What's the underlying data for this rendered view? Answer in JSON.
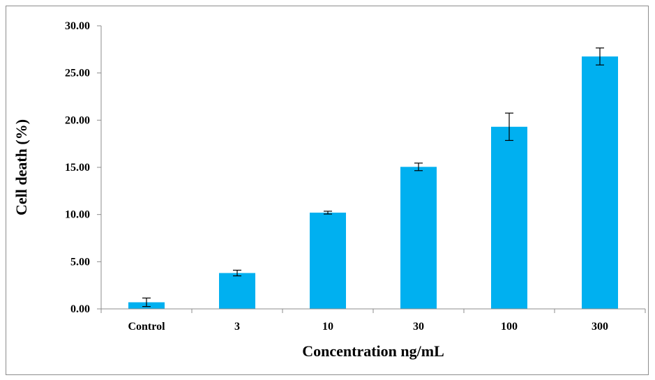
{
  "chart_data": {
    "type": "bar",
    "title": "",
    "xlabel": "Concentration ng/mL",
    "ylabel": "Cell death (%)",
    "categories": [
      "Control",
      "3",
      "10",
      "30",
      "100",
      "300"
    ],
    "values": [
      0.7,
      3.8,
      10.2,
      15.05,
      19.3,
      26.75
    ],
    "errors": [
      0.45,
      0.3,
      0.15,
      0.4,
      1.45,
      0.9
    ],
    "ylim": [
      0,
      30
    ],
    "yticks": [
      "0.00",
      "5.00",
      "10.00",
      "15.00",
      "20.00",
      "25.00",
      "30.00"
    ],
    "grid": false,
    "legend": "none",
    "bar_color": "#00b0f0",
    "error_color": "#000000",
    "axis_color": "#8c8c8c"
  }
}
